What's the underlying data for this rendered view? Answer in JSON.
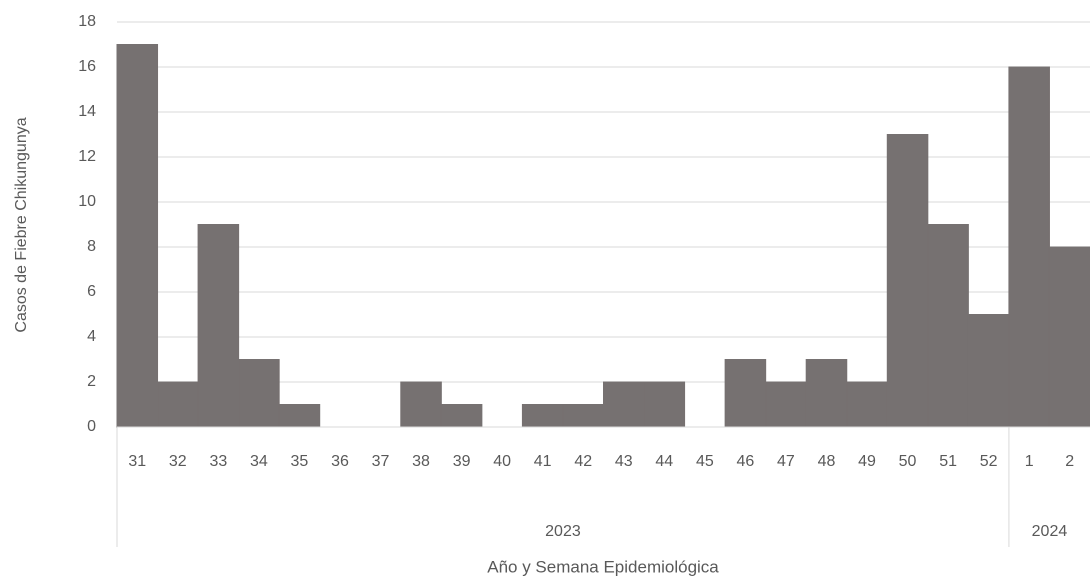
{
  "chart_data": {
    "type": "bar",
    "y_label": "Casos de Fiebre Chikungunya",
    "x_label": "Año y Semana Epidemiológica",
    "color": "#767171",
    "grid": true,
    "ylim": [
      0,
      18
    ],
    "yticks": [
      0,
      2,
      4,
      6,
      8,
      10,
      12,
      14,
      16,
      18
    ],
    "groups": [
      {
        "label": "2023",
        "categories": [
          "31",
          "32",
          "33",
          "34",
          "35",
          "36",
          "37",
          "38",
          "39",
          "40",
          "41",
          "42",
          "43",
          "44",
          "45",
          "46",
          "47",
          "48",
          "49",
          "50",
          "51",
          "52"
        ],
        "values": [
          17,
          2,
          9,
          3,
          1,
          0,
          0,
          2,
          1,
          0,
          1,
          1,
          2,
          2,
          0,
          3,
          2,
          3,
          2,
          13,
          9,
          5
        ]
      },
      {
        "label": "2024",
        "categories": [
          "1",
          "2"
        ],
        "values": [
          16,
          8
        ]
      }
    ]
  }
}
